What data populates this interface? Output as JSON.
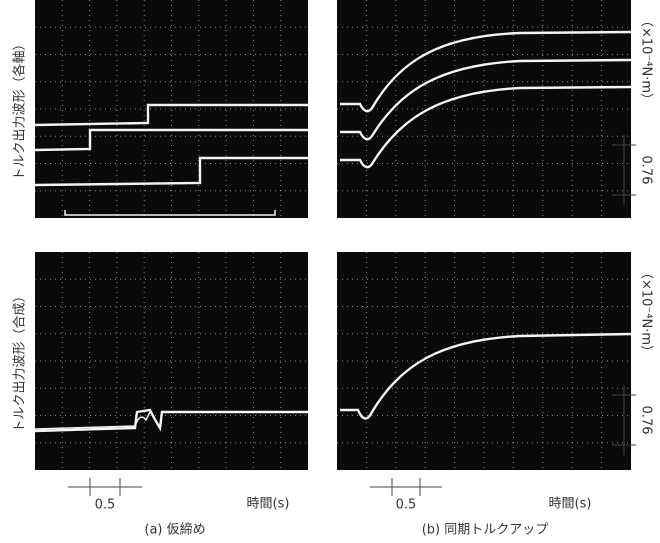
{
  "figure": {
    "panels": {
      "a": {
        "row_labels": [
          "トルク出力波形（各軸）",
          "トルク出力波形（合成）"
        ],
        "caption": "(a) 仮締め",
        "time_scale": "0.5",
        "time_label": "時間(s)"
      },
      "b": {
        "unit_labels": [
          "（×10⁻⁴N·m）",
          "（×10⁻⁴N·m）"
        ],
        "torque_scales": [
          "0.76",
          "0.76"
        ],
        "caption": "(b) 同期トルクアップ",
        "time_scale": "0.5",
        "time_label": "時間(s)"
      }
    }
  }
}
